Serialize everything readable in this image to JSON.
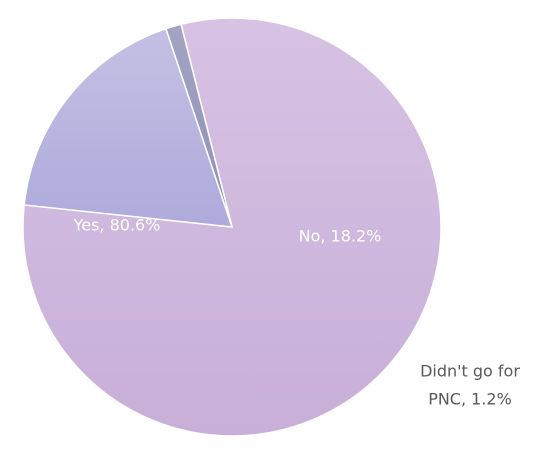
{
  "chart_data": {
    "type": "pie",
    "slices": [
      {
        "category": "Yes",
        "value": 80.6,
        "label": "Yes, 80.6%",
        "label_lines": [
          "Yes, 80.6%"
        ],
        "color_light": "#d7c2e3",
        "color_dark": "#c7afd8",
        "label_color": "#ffffff"
      },
      {
        "category": "No",
        "value": 18.2,
        "label": "No, 18.2%",
        "label_lines": [
          "No, 18.2%"
        ],
        "color_light": "#c4c0e4",
        "color_dark": "#aeaadb",
        "label_color": "#ffffff"
      },
      {
        "category": "Didn't go for PNC",
        "value": 1.2,
        "label": "Didn't go for PNC, 1.2%",
        "label_lines": [
          "Didn't go for",
          "PNC, 1.2%"
        ],
        "color_light": "#a3a4c4",
        "color_dark": "#8d8fb6",
        "label_color": "#595959"
      }
    ],
    "title": "",
    "legend": "none"
  }
}
